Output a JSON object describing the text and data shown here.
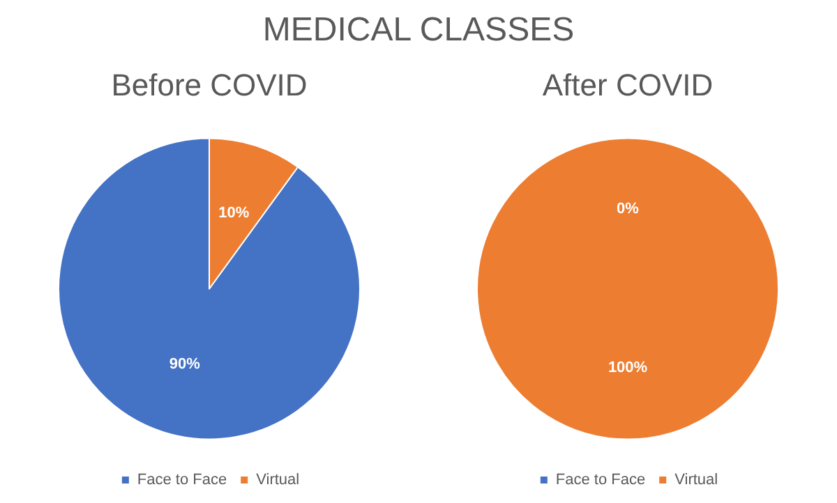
{
  "chart_data": [
    {
      "type": "pie",
      "title": "Before COVID",
      "annotations": [
        "MEDICAL CLASSES"
      ],
      "categories": [
        "Face to Face",
        "Virtual"
      ],
      "values": [
        90,
        10
      ],
      "value_labels": [
        "90%",
        "10%"
      ],
      "colors": [
        "#4472c4",
        "#ed7d31"
      ],
      "legend": "bottom"
    },
    {
      "type": "pie",
      "title": "After COVID",
      "categories": [
        "Face to Face",
        "Virtual"
      ],
      "values": [
        0,
        100
      ],
      "value_labels": [
        "0%",
        "100%"
      ],
      "colors": [
        "#4472c4",
        "#ed7d31"
      ],
      "legend": "bottom"
    }
  ]
}
